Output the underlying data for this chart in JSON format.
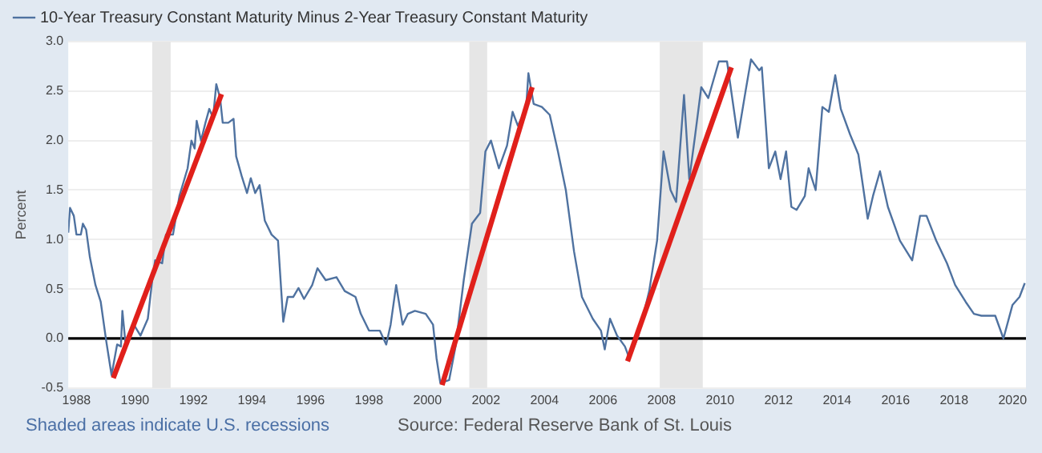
{
  "chart_data": {
    "type": "line",
    "ylabel": "Percent",
    "annotations": [
      "Shaded areas indicate U.S. recessions",
      "Source: Federal Reserve Bank of St. Louis"
    ],
    "xlim": [
      1987.72,
      2020.46
    ],
    "xticks": [
      1988,
      1990,
      1992,
      1994,
      1996,
      1998,
      2000,
      2002,
      2004,
      2006,
      2008,
      2010,
      2012,
      2014,
      2016,
      2018,
      2020
    ],
    "ylim": [
      -0.5,
      3.0
    ],
    "yticks": [
      -0.5,
      {
        "value": 0,
        "label": "0.0"
      },
      0.5,
      {
        "value": 1,
        "label": "1.0"
      },
      1.5,
      {
        "value": 2,
        "label": "2.0"
      },
      2.5,
      {
        "value": 3,
        "label": "3.0"
      }
    ],
    "grid": "y",
    "legend": "top left",
    "marker": "none",
    "line_style": "solid",
    "ref_lines": [
      {
        "axis": "y",
        "value": 0,
        "label": null,
        "color": "#000000"
      }
    ],
    "bands": [
      {
        "axis": "x",
        "from": 1990.59,
        "to": 1991.22,
        "label": null,
        "color": "#e6e6e6"
      },
      {
        "axis": "x",
        "from": 2001.43,
        "to": 2002.04,
        "label": null,
        "color": "#e6e6e6"
      },
      {
        "axis": "x",
        "from": 2007.94,
        "to": 2009.41,
        "label": null,
        "color": "#e6e6e6"
      }
    ],
    "series": [
      {
        "name": "10-Year Treasury Constant Maturity Minus 2-Year Treasury Constant Maturity",
        "color": "#4f72a0",
        "x": [
          1987.72,
          1987.78,
          1987.91,
          1988.0,
          1988.15,
          1988.22,
          1988.33,
          1988.46,
          1988.65,
          1988.83,
          1989.02,
          1989.2,
          1989.39,
          1989.52,
          1989.57,
          1989.67,
          1989.94,
          1990.19,
          1990.44,
          1990.59,
          1990.69,
          1990.93,
          1991.06,
          1991.3,
          1991.52,
          1991.8,
          1991.93,
          1992.04,
          1992.11,
          1992.26,
          1992.41,
          1992.54,
          1992.67,
          1992.78,
          1992.91,
          1993.0,
          1993.19,
          1993.37,
          1993.46,
          1993.65,
          1993.83,
          1993.96,
          1994.11,
          1994.26,
          1994.44,
          1994.67,
          1994.89,
          1995.07,
          1995.22,
          1995.41,
          1995.59,
          1995.78,
          1996.06,
          1996.24,
          1996.52,
          1996.89,
          1997.17,
          1997.54,
          1997.72,
          1998.0,
          1998.37,
          1998.59,
          1998.74,
          1998.93,
          1999.15,
          1999.33,
          1999.57,
          1999.94,
          2000.19,
          2000.31,
          2000.44,
          2000.74,
          2000.96,
          2001.24,
          2001.52,
          2001.8,
          2001.98,
          2002.17,
          2002.44,
          2002.72,
          2002.91,
          2003.09,
          2003.37,
          2003.45,
          2003.63,
          2003.91,
          2004.18,
          2004.46,
          2004.73,
          2005.01,
          2005.28,
          2005.65,
          2005.93,
          2006.06,
          2006.24,
          2006.48,
          2006.75,
          2006.9,
          2007.21,
          2007.58,
          2007.85,
          2008.07,
          2008.31,
          2008.5,
          2008.77,
          2008.95,
          2009.14,
          2009.36,
          2009.6,
          2009.96,
          2010.24,
          2010.61,
          2010.88,
          2011.06,
          2011.34,
          2011.43,
          2011.67,
          2011.89,
          2012.07,
          2012.26,
          2012.44,
          2012.62,
          2012.9,
          2013.03,
          2013.27,
          2013.5,
          2013.72,
          2013.94,
          2014.13,
          2014.45,
          2014.73,
          2015.05,
          2015.23,
          2015.47,
          2015.74,
          2016.15,
          2016.57,
          2016.84,
          2017.06,
          2017.39,
          2017.76,
          2018.04,
          2018.4,
          2018.68,
          2018.94,
          2019.41,
          2019.69,
          2020.0,
          2020.24,
          2020.42
        ],
        "values": [
          1.07,
          1.32,
          1.24,
          1.05,
          1.05,
          1.16,
          1.1,
          0.82,
          0.54,
          0.37,
          -0.03,
          -0.37,
          -0.06,
          -0.08,
          0.28,
          -0.03,
          0.15,
          0.03,
          0.2,
          0.59,
          0.79,
          0.76,
          1.05,
          1.05,
          1.44,
          1.72,
          2.0,
          1.92,
          2.2,
          2.0,
          2.18,
          2.32,
          2.23,
          2.57,
          2.43,
          2.18,
          2.18,
          2.22,
          1.84,
          1.64,
          1.47,
          1.62,
          1.47,
          1.55,
          1.19,
          1.05,
          0.99,
          0.17,
          0.42,
          0.42,
          0.51,
          0.4,
          0.54,
          0.71,
          0.59,
          0.62,
          0.48,
          0.42,
          0.25,
          0.08,
          0.08,
          -0.06,
          0.14,
          0.54,
          0.14,
          0.25,
          0.28,
          0.25,
          0.14,
          -0.2,
          -0.45,
          -0.42,
          -0.08,
          0.59,
          1.16,
          1.27,
          1.89,
          2.0,
          1.72,
          1.95,
          2.29,
          2.15,
          2.32,
          2.68,
          2.37,
          2.34,
          2.26,
          1.89,
          1.5,
          0.88,
          0.42,
          0.2,
          0.08,
          -0.11,
          0.2,
          0.03,
          -0.08,
          -0.2,
          0.03,
          0.48,
          0.99,
          1.89,
          1.5,
          1.38,
          2.46,
          1.61,
          2.03,
          2.54,
          2.43,
          2.8,
          2.8,
          2.03,
          2.51,
          2.82,
          2.71,
          2.74,
          1.72,
          1.89,
          1.61,
          1.89,
          1.33,
          1.3,
          1.44,
          1.72,
          1.5,
          2.34,
          2.29,
          2.66,
          2.32,
          2.06,
          1.86,
          1.21,
          1.44,
          1.69,
          1.33,
          0.99,
          0.79,
          1.24,
          1.24,
          0.99,
          0.76,
          0.54,
          0.37,
          0.25,
          0.23,
          0.23,
          0.0,
          0.34,
          0.42,
          0.56
        ]
      },
      {
        "color": "#e0201b",
        "x": [
          1989.26,
          1992.96
        ],
        "values": [
          -0.4,
          2.47
        ]
      },
      {
        "color": "#e0201b",
        "x": [
          2000.5,
          2003.58
        ],
        "values": [
          -0.47,
          2.54
        ]
      },
      {
        "color": "#e0201b",
        "x": [
          2006.84,
          2010.39
        ],
        "values": [
          -0.23,
          2.74
        ]
      }
    ]
  }
}
